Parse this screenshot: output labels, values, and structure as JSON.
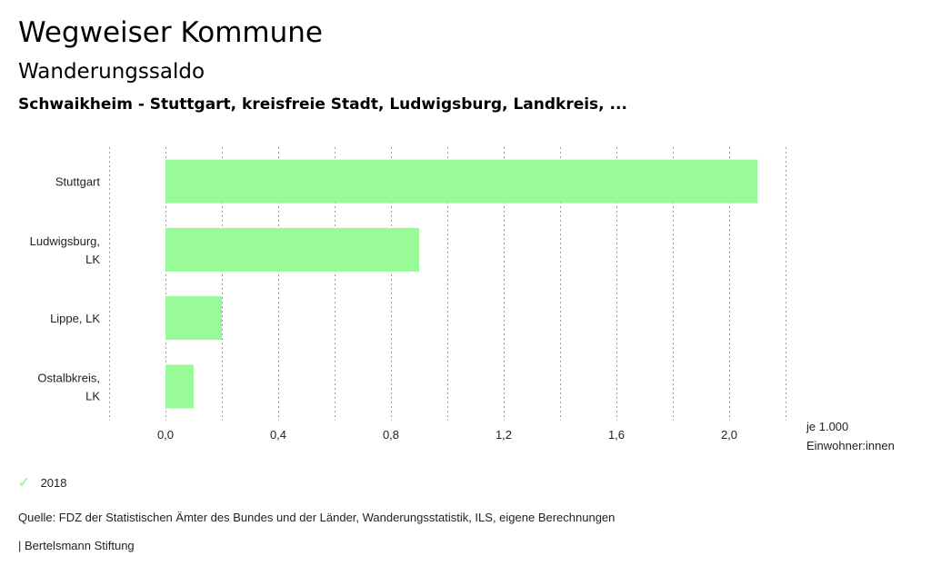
{
  "header": {
    "title": "Wegweiser Kommune",
    "subtitle": "Wanderungssaldo",
    "regions": "Schwaikheim - Stuttgart, kreisfreie Stadt, Ludwigsburg, Landkreis, ..."
  },
  "chart_data": {
    "type": "bar",
    "orientation": "horizontal",
    "categories": [
      [
        "Stuttgart"
      ],
      [
        "Ludwigsburg,",
        "LK"
      ],
      [
        "Lippe, LK"
      ],
      [
        "Ostalbkreis,",
        "LK"
      ]
    ],
    "series": [
      {
        "name": "2018",
        "values": [
          2.1,
          0.9,
          0.2,
          0.1
        ]
      }
    ],
    "xlim": [
      -0.2,
      2.2
    ],
    "xticks": [
      "0,0",
      "0,4",
      "0,8",
      "1,2",
      "1,6",
      "2,0"
    ],
    "xtick_values": [
      0.0,
      0.4,
      0.8,
      1.2,
      1.6,
      2.0
    ],
    "unit_label": [
      "je 1.000",
      "Einwohner:innen"
    ],
    "grid": true,
    "bar_color": "#98fb98"
  },
  "legend": {
    "label": "2018",
    "icon": "check-icon",
    "color": "#98fb98"
  },
  "footer": {
    "source": "Quelle: FDZ der Statistischen Ämter des Bundes und der Länder, Wanderungsstatistik, ILS, eigene Berechnungen",
    "publisher": "| Bertelsmann Stiftung"
  }
}
